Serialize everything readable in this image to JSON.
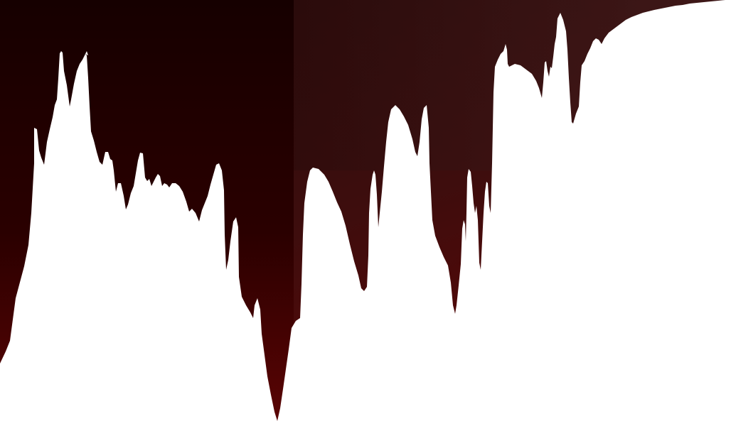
{
  "artwork": {
    "description_colors": {
      "left_top": "#160000",
      "left_bottom": "#560000",
      "right_top_left": "#2a0b0b",
      "right_top_right": "#3b1a1a",
      "right_bottom": "#5a0a0a",
      "foreground": "#ffffff"
    }
  }
}
